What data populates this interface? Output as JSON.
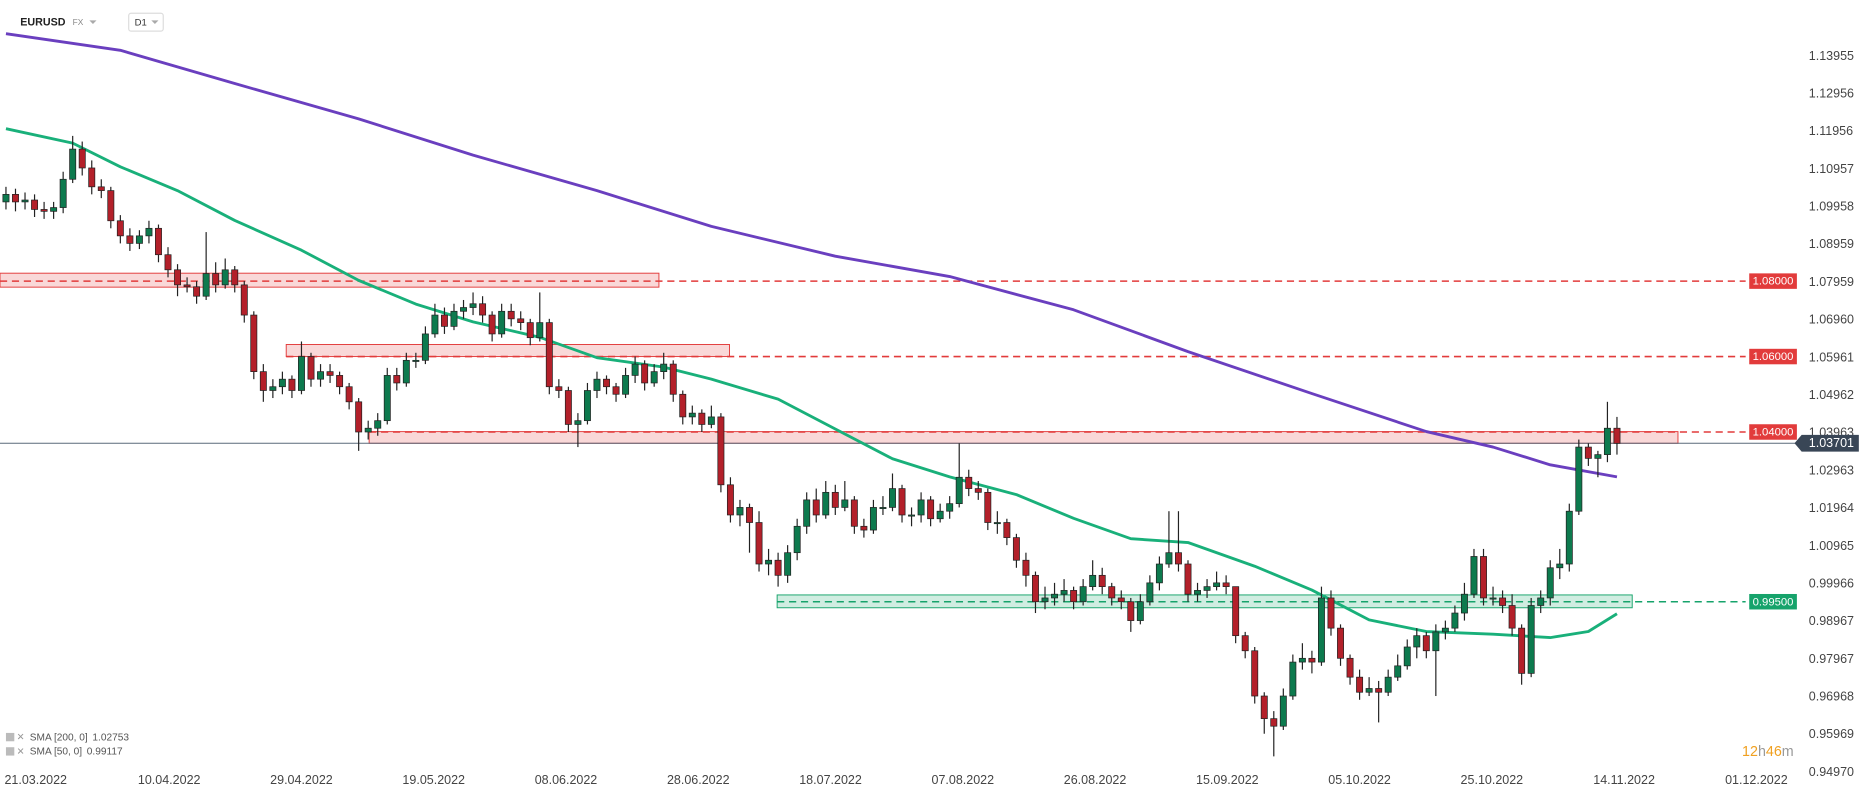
{
  "chart_data": {
    "type": "candlestick",
    "symbol": "EURUSD",
    "market": "FX",
    "timeframe": "D1",
    "up_color": "#0d7a4e",
    "down_color": "#b3202a",
    "xlim": [
      -0.625,
      193.75
    ],
    "ylim": [
      0.946,
      1.1545
    ],
    "xticks": [
      {
        "value": 3.125,
        "label": "21.03.2022"
      },
      {
        "value": 17.125,
        "label": "10.04.2022"
      },
      {
        "value": 31,
        "label": "29.04.2022"
      },
      {
        "value": 44.875,
        "label": "19.05.2022"
      },
      {
        "value": 58.75,
        "label": "08.06.2022"
      },
      {
        "value": 72.625,
        "label": "28.06.2022"
      },
      {
        "value": 86.5,
        "label": "18.07.2022"
      },
      {
        "value": 100.375,
        "label": "07.08.2022"
      },
      {
        "value": 114.25,
        "label": "26.08.2022"
      },
      {
        "value": 128.125,
        "label": "15.09.2022"
      },
      {
        "value": 142,
        "label": "05.10.2022"
      },
      {
        "value": 155.875,
        "label": "25.10.2022"
      },
      {
        "value": 169.75,
        "label": "14.11.2022"
      },
      {
        "value": 183.625,
        "label": "01.12.2022"
      }
    ],
    "yticks": [
      1.13955,
      1.12956,
      1.11956,
      1.10957,
      1.09958,
      1.08959,
      1.07959,
      {
        "value": 1.0696,
        "label": "1.06960"
      },
      1.05961,
      1.04962,
      1.03963,
      1.02963,
      1.01964,
      1.00965,
      0.99966,
      0.98967,
      0.97967,
      0.96968,
      0.95969,
      {
        "value": 0.9497,
        "label": "0.94970"
      }
    ],
    "candles": [
      [
        1.101,
        1.105,
        1.099,
        1.103
      ],
      [
        1.103,
        1.1045,
        1.0985,
        1.101
      ],
      [
        1.101,
        1.1035,
        1.099,
        1.1015
      ],
      [
        1.1015,
        1.103,
        1.097,
        1.099
      ],
      [
        1.099,
        1.101,
        1.0965,
        1.0985
      ],
      [
        1.0985,
        1.101,
        1.0965,
        1.0995
      ],
      [
        1.0995,
        1.109,
        1.098,
        1.107
      ],
      [
        1.107,
        1.1185,
        1.106,
        1.115
      ],
      [
        1.115,
        1.117,
        1.108,
        1.11
      ],
      [
        1.11,
        1.112,
        1.103,
        1.105
      ],
      [
        1.105,
        1.107,
        1.102,
        1.104
      ],
      [
        1.104,
        1.105,
        1.094,
        1.096
      ],
      [
        1.096,
        1.0975,
        1.09,
        1.092
      ],
      [
        1.092,
        1.094,
        1.088,
        1.09
      ],
      [
        1.09,
        1.0935,
        1.0885,
        1.092
      ],
      [
        1.092,
        1.096,
        1.09,
        1.094
      ],
      [
        1.094,
        1.095,
        1.085,
        1.087
      ],
      [
        1.087,
        1.089,
        1.081,
        1.083
      ],
      [
        1.083,
        1.0845,
        1.076,
        1.079
      ],
      [
        1.079,
        1.081,
        1.077,
        1.0785
      ],
      [
        1.0785,
        1.08,
        1.074,
        1.076
      ],
      [
        1.076,
        1.093,
        1.075,
        1.082
      ],
      [
        1.082,
        1.085,
        1.077,
        1.079
      ],
      [
        1.079,
        1.086,
        1.078,
        1.083
      ],
      [
        1.083,
        1.084,
        1.077,
        1.079
      ],
      [
        1.079,
        1.08,
        1.069,
        1.071
      ],
      [
        1.071,
        1.072,
        1.054,
        1.056
      ],
      [
        1.056,
        1.058,
        1.048,
        1.051
      ],
      [
        1.051,
        1.054,
        1.049,
        1.052
      ],
      [
        1.052,
        1.056,
        1.05,
        1.054
      ],
      [
        1.054,
        1.055,
        1.049,
        1.051
      ],
      [
        1.051,
        1.064,
        1.05,
        1.06
      ],
      [
        1.06,
        1.061,
        1.052,
        1.054
      ],
      [
        1.054,
        1.058,
        1.052,
        1.056
      ],
      [
        1.056,
        1.058,
        1.053,
        1.055
      ],
      [
        1.055,
        1.056,
        1.05,
        1.052
      ],
      [
        1.052,
        1.053,
        1.046,
        1.048
      ],
      [
        1.048,
        1.049,
        1.035,
        1.04
      ],
      [
        1.04,
        1.043,
        1.038,
        1.041
      ],
      [
        1.041,
        1.045,
        1.039,
        1.043
      ],
      [
        1.043,
        1.057,
        1.042,
        1.055
      ],
      [
        1.055,
        1.057,
        1.051,
        1.053
      ],
      [
        1.053,
        1.061,
        1.052,
        1.059
      ],
      [
        1.059,
        1.061,
        1.057,
        1.059
      ],
      [
        1.059,
        1.068,
        1.058,
        1.066
      ],
      [
        1.066,
        1.074,
        1.065,
        1.071
      ],
      [
        1.071,
        1.073,
        1.066,
        1.068
      ],
      [
        1.068,
        1.074,
        1.067,
        1.072
      ],
      [
        1.072,
        1.075,
        1.07,
        1.073
      ],
      [
        1.073,
        1.077,
        1.071,
        1.074
      ],
      [
        1.074,
        1.076,
        1.069,
        1.071
      ],
      [
        1.071,
        1.072,
        1.064,
        1.066
      ],
      [
        1.066,
        1.074,
        1.065,
        1.072
      ],
      [
        1.072,
        1.074,
        1.068,
        1.07
      ],
      [
        1.07,
        1.072,
        1.067,
        1.069
      ],
      [
        1.069,
        1.07,
        1.063,
        1.065
      ],
      [
        1.065,
        1.077,
        1.064,
        1.069
      ],
      [
        1.069,
        1.07,
        1.05,
        1.052
      ],
      [
        1.052,
        1.054,
        1.049,
        1.051
      ],
      [
        1.051,
        1.052,
        1.04,
        1.042
      ],
      [
        1.042,
        1.045,
        1.036,
        1.043
      ],
      [
        1.043,
        1.053,
        1.042,
        1.051
      ],
      [
        1.051,
        1.056,
        1.049,
        1.054
      ],
      [
        1.054,
        1.055,
        1.05,
        1.052
      ],
      [
        1.052,
        1.053,
        1.048,
        1.05
      ],
      [
        1.05,
        1.057,
        1.049,
        1.055
      ],
      [
        1.055,
        1.06,
        1.053,
        1.058
      ],
      [
        1.058,
        1.059,
        1.051,
        1.053
      ],
      [
        1.053,
        1.058,
        1.052,
        1.056
      ],
      [
        1.056,
        1.061,
        1.054,
        1.058
      ],
      [
        1.058,
        1.059,
        1.048,
        1.05
      ],
      [
        1.05,
        1.051,
        1.042,
        1.044
      ],
      [
        1.044,
        1.047,
        1.042,
        1.045
      ],
      [
        1.045,
        1.046,
        1.04,
        1.042
      ],
      [
        1.042,
        1.047,
        1.041,
        1.044
      ],
      [
        1.044,
        1.045,
        1.024,
        1.026
      ],
      [
        1.026,
        1.028,
        1.016,
        1.018
      ],
      [
        1.018,
        1.022,
        1.015,
        1.02
      ],
      [
        1.02,
        1.021,
        1.008,
        1.016
      ],
      [
        1.016,
        1.019,
        1.003,
        1.005
      ],
      [
        1.005,
        1.009,
        1.002,
        1.006
      ],
      [
        1.006,
        1.008,
        0.999,
        1.002
      ],
      [
        1.002,
        1.01,
        1.0,
        1.008
      ],
      [
        1.008,
        1.017,
        1.006,
        1.015
      ],
      [
        1.015,
        1.024,
        1.013,
        1.022
      ],
      [
        1.022,
        1.025,
        1.016,
        1.018
      ],
      [
        1.018,
        1.027,
        1.017,
        1.024
      ],
      [
        1.024,
        1.026,
        1.018,
        1.02
      ],
      [
        1.02,
        1.027,
        1.019,
        1.022
      ],
      [
        1.022,
        1.023,
        1.013,
        1.015
      ],
      [
        1.015,
        1.017,
        1.012,
        1.014
      ],
      [
        1.014,
        1.022,
        1.013,
        1.02
      ],
      [
        1.02,
        1.023,
        1.018,
        1.02
      ],
      [
        1.02,
        1.029,
        1.019,
        1.025
      ],
      [
        1.025,
        1.026,
        1.016,
        1.018
      ],
      [
        1.018,
        1.02,
        1.015,
        1.018
      ],
      [
        1.018,
        1.024,
        1.016,
        1.022
      ],
      [
        1.022,
        1.023,
        1.015,
        1.017
      ],
      [
        1.017,
        1.021,
        1.016,
        1.019
      ],
      [
        1.019,
        1.023,
        1.017,
        1.021
      ],
      [
        1.021,
        1.037,
        1.02,
        1.028
      ],
      [
        1.028,
        1.03,
        1.023,
        1.025
      ],
      [
        1.025,
        1.027,
        1.022,
        1.024
      ],
      [
        1.024,
        1.025,
        1.014,
        1.016
      ],
      [
        1.016,
        1.019,
        1.013,
        1.016
      ],
      [
        1.016,
        1.017,
        1.01,
        1.012
      ],
      [
        1.012,
        1.013,
        1.004,
        1.006
      ],
      [
        1.006,
        1.008,
        0.999,
        1.002
      ],
      [
        1.002,
        1.003,
        0.992,
        0.995
      ],
      [
        0.995,
        0.999,
        0.993,
        0.996
      ],
      [
        0.996,
        1.0,
        0.994,
        0.997
      ],
      [
        0.997,
        1.001,
        0.995,
        0.998
      ],
      [
        0.998,
        0.999,
        0.993,
        0.995
      ],
      [
        0.995,
        1.001,
        0.994,
        0.999
      ],
      [
        0.999,
        1.006,
        0.998,
        1.002
      ],
      [
        1.002,
        1.004,
        0.997,
        0.999
      ],
      [
        0.999,
        1.0,
        0.994,
        0.996
      ],
      [
        0.996,
        0.998,
        0.993,
        0.995
      ],
      [
        0.995,
        0.996,
        0.987,
        0.99
      ],
      [
        0.99,
        0.997,
        0.989,
        0.995
      ],
      [
        0.995,
        1.002,
        0.994,
        1.0
      ],
      [
        1.0,
        1.007,
        0.998,
        1.005
      ],
      [
        1.005,
        1.019,
        1.004,
        1.008
      ],
      [
        1.008,
        1.019,
        1.003,
        1.005
      ],
      [
        1.005,
        1.006,
        0.995,
        0.997
      ],
      [
        0.997,
        1.0,
        0.995,
        0.998
      ],
      [
        0.998,
        1.001,
        0.996,
        0.999
      ],
      [
        0.999,
        1.003,
        0.998,
        1.0
      ],
      [
        1.0,
        1.002,
        0.997,
        0.999
      ],
      [
        0.999,
        0.999,
        0.984,
        0.986
      ],
      [
        0.986,
        0.987,
        0.98,
        0.982
      ],
      [
        0.982,
        0.983,
        0.968,
        0.97
      ],
      [
        0.97,
        0.971,
        0.96,
        0.964
      ],
      [
        0.964,
        0.966,
        0.954,
        0.962
      ],
      [
        0.962,
        0.972,
        0.961,
        0.97
      ],
      [
        0.97,
        0.981,
        0.969,
        0.979
      ],
      [
        0.979,
        0.984,
        0.977,
        0.98
      ],
      [
        0.98,
        0.982,
        0.976,
        0.979
      ],
      [
        0.979,
        0.999,
        0.978,
        0.996
      ],
      [
        0.996,
        0.998,
        0.986,
        0.988
      ],
      [
        0.988,
        0.989,
        0.978,
        0.98
      ],
      [
        0.98,
        0.981,
        0.973,
        0.975
      ],
      [
        0.975,
        0.977,
        0.969,
        0.971
      ],
      [
        0.971,
        0.975,
        0.97,
        0.972
      ],
      [
        0.972,
        0.974,
        0.963,
        0.971
      ],
      [
        0.971,
        0.977,
        0.97,
        0.975
      ],
      [
        0.975,
        0.981,
        0.974,
        0.978
      ],
      [
        0.978,
        0.985,
        0.977,
        0.983
      ],
      [
        0.983,
        0.988,
        0.98,
        0.986
      ],
      [
        0.986,
        0.987,
        0.98,
        0.982
      ],
      [
        0.982,
        0.989,
        0.97,
        0.987
      ],
      [
        0.987,
        0.99,
        0.985,
        0.988
      ],
      [
        0.988,
        0.994,
        0.987,
        0.992
      ],
      [
        0.992,
        1.0,
        0.99,
        0.997
      ],
      [
        0.997,
        1.009,
        0.996,
        1.007
      ],
      [
        1.007,
        1.009,
        0.994,
        0.996
      ],
      [
        0.996,
        0.999,
        0.994,
        0.996
      ],
      [
        0.996,
        0.998,
        0.992,
        0.994
      ],
      [
        0.994,
        0.997,
        0.986,
        0.988
      ],
      [
        0.988,
        0.989,
        0.973,
        0.976
      ],
      [
        0.976,
        0.996,
        0.975,
        0.994
      ],
      [
        0.994,
        0.998,
        0.992,
        0.996
      ],
      [
        0.996,
        1.006,
        0.994,
        1.004
      ],
      [
        1.004,
        1.009,
        1.001,
        1.005
      ],
      [
        1.005,
        1.021,
        1.003,
        1.019
      ],
      [
        1.019,
        1.038,
        1.018,
        1.036
      ],
      [
        1.036,
        1.037,
        1.031,
        1.033
      ],
      [
        1.033,
        1.035,
        1.028,
        1.034
      ],
      [
        1.034,
        1.048,
        1.032,
        1.041
      ],
      [
        1.041,
        1.044,
        1.034,
        1.037
      ]
    ],
    "series": [
      {
        "name": "SMA [200, 0]",
        "value": 1.02753,
        "color": "#6a3fbf",
        "x": [
          0,
          12,
          24,
          37,
          49,
          62,
          74,
          87,
          99,
          112,
          124,
          137,
          149,
          156,
          162,
          169
        ],
        "values": [
          1.1456,
          1.1412,
          1.1324,
          1.123,
          1.1134,
          1.104,
          1.0945,
          1.0866,
          1.0812,
          1.0724,
          1.0613,
          1.0502,
          1.0401,
          1.036,
          1.0313,
          1.0281
        ]
      },
      {
        "name": "SMA [50, 0]",
        "value": 0.99117,
        "color": "#19b07a",
        "x": [
          0,
          7,
          12,
          18,
          24,
          31,
          37,
          43,
          49,
          56,
          62,
          69,
          74,
          81,
          87,
          93,
          99,
          106,
          112,
          118,
          124,
          131,
          137,
          143,
          149,
          156,
          162,
          166,
          169
        ],
        "values": [
          1.1204,
          1.1166,
          1.1103,
          1.104,
          1.0961,
          1.0882,
          1.0802,
          1.0739,
          1.0692,
          1.0651,
          1.0597,
          1.0572,
          1.054,
          1.0487,
          1.0408,
          1.0329,
          1.0281,
          1.0234,
          1.0171,
          1.0117,
          1.0107,
          1.0044,
          0.9981,
          0.9902,
          0.9871,
          0.9864,
          0.9855,
          0.9871,
          0.9918
        ]
      }
    ],
    "levels": [
      {
        "value": 1.08,
        "label": "1.08000",
        "band": [
          1.0784,
          1.0821
        ],
        "from": -0.625,
        "to": 68.5,
        "color": "#e23b3b"
      },
      {
        "value": 1.06,
        "label": "1.06000",
        "band": [
          1.06,
          1.0632
        ],
        "from": 29.4,
        "to": 75.9,
        "color": "#e23b3b"
      },
      {
        "value": 1.04,
        "label": "1.04000",
        "band": [
          1.037,
          1.0401
        ],
        "from": 38.1,
        "to": 175.4,
        "color": "#e23b3b"
      },
      {
        "value": 0.995,
        "label": "0.99500",
        "band": [
          0.9934,
          0.9968
        ],
        "from": 80.9,
        "to": 170.6,
        "color": "#16a36b"
      }
    ],
    "last_price": {
      "value": 1.03701,
      "label": "1.03701"
    },
    "countdown": [
      "12",
      "h",
      "46",
      "m"
    ]
  }
}
